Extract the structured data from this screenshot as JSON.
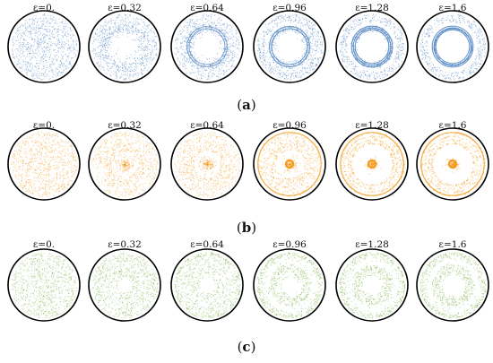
{
  "rows": [
    {
      "label": "a",
      "color": "#4a7fbf",
      "panels": [
        {
          "epsilon_label": "ε=0."
        },
        {
          "epsilon_label": "ε=0.32"
        },
        {
          "epsilon_label": "ε=0.64"
        },
        {
          "epsilon_label": "ε=0.96"
        },
        {
          "epsilon_label": "ε=1.28"
        },
        {
          "epsilon_label": "ε=1.6"
        }
      ]
    },
    {
      "label": "b",
      "color": "#f39c1f",
      "panels": [
        {
          "epsilon_label": "ε=0."
        },
        {
          "epsilon_label": "ε=0.32"
        },
        {
          "epsilon_label": "ε=0.64"
        },
        {
          "epsilon_label": "ε=0.96"
        },
        {
          "epsilon_label": "ε=1.28"
        },
        {
          "epsilon_label": "ε=1.6"
        }
      ]
    },
    {
      "label": "c",
      "color": "#7fb24a",
      "panels": [
        {
          "epsilon_label": "ε=0."
        },
        {
          "epsilon_label": "ε=0.32"
        },
        {
          "epsilon_label": "ε=0.64"
        },
        {
          "epsilon_label": "ε=0.96"
        },
        {
          "epsilon_label": "ε=1.28"
        },
        {
          "epsilon_label": "ε=1.6"
        }
      ]
    }
  ]
}
